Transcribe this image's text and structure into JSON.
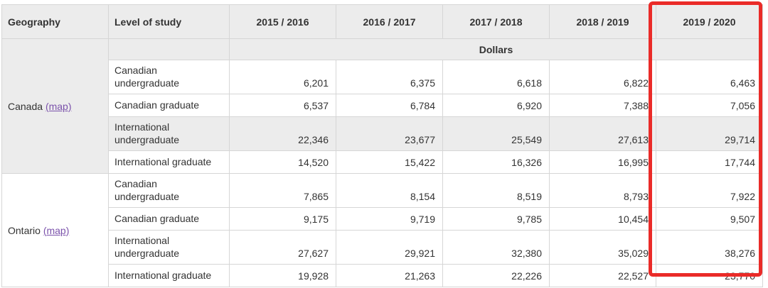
{
  "colors": {
    "header_bg": "#ececec",
    "row_highlight_bg": "#ececec",
    "table_border": "#c9c9c9",
    "grid_border": "#d6d6d6",
    "text": "#333333",
    "link": "#7b52ab",
    "annotation_red": "#ea2b28"
  },
  "table": {
    "column_headers": {
      "geography": "Geography",
      "level_of_study": "Level of study",
      "years": [
        "2015 / 2016",
        "2016 / 2017",
        "2017 / 2018",
        "2018 / 2019",
        "2019 / 2020"
      ]
    },
    "unit_row_label": "Dollars",
    "groups": [
      {
        "geography": "Canada",
        "map_link": "(map)",
        "rows": [
          {
            "level": "Canadian undergraduate",
            "values": [
              "6,201",
              "6,375",
              "6,618",
              "6,822",
              "6,463"
            ]
          },
          {
            "level": "Canadian graduate",
            "values": [
              "6,537",
              "6,784",
              "6,920",
              "7,388",
              "7,056"
            ]
          },
          {
            "level": "International undergraduate",
            "values": [
              "22,346",
              "23,677",
              "25,549",
              "27,613",
              "29,714"
            ],
            "highlighted": true
          },
          {
            "level": "International graduate",
            "values": [
              "14,520",
              "15,422",
              "16,326",
              "16,995",
              "17,744"
            ]
          }
        ]
      },
      {
        "geography": "Ontario",
        "map_link": "(map)",
        "rows": [
          {
            "level": "Canadian undergraduate",
            "values": [
              "7,865",
              "8,154",
              "8,519",
              "8,793",
              "7,922"
            ]
          },
          {
            "level": "Canadian graduate",
            "values": [
              "9,175",
              "9,719",
              "9,785",
              "10,454",
              "9,507"
            ]
          },
          {
            "level": "International undergraduate",
            "values": [
              "27,627",
              "29,921",
              "32,380",
              "35,029",
              "38,276"
            ]
          },
          {
            "level": "International graduate",
            "values": [
              "19,928",
              "21,263",
              "22,226",
              "22,527",
              "23,770"
            ]
          }
        ]
      }
    ],
    "annotation": {
      "highlighted_column": "2019 / 2020"
    }
  }
}
